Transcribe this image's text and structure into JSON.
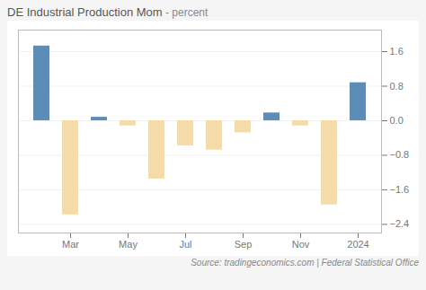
{
  "chart_data": {
    "type": "bar",
    "title": "DE Industrial Production Mom",
    "subtitle": " - percent",
    "caption": "Source: tradingeconomics.com | Federal Statistical Office",
    "categories": [
      null,
      "Mar",
      null,
      "May",
      null,
      "Jul",
      null,
      "Sep",
      null,
      "Nov",
      null,
      "2024"
    ],
    "values": [
      1.73,
      -2.18,
      0.08,
      -0.12,
      -1.35,
      -0.58,
      -0.68,
      -0.28,
      0.18,
      -0.12,
      -1.95,
      0.88
    ],
    "colors": [
      "#5b8db8",
      "#f5dba8",
      "#5b8db8",
      "#f5dba8",
      "#f5dba8",
      "#f5dba8",
      "#f5dba8",
      "#f5dba8",
      "#5b8db8",
      "#f5dba8",
      "#f5dba8",
      "#5b8db8"
    ],
    "ylim": [
      -2.6,
      2.1
    ],
    "yticks": [
      1.6,
      0.8,
      0.0,
      -0.8,
      -1.6,
      -2.4
    ],
    "grid": true
  }
}
